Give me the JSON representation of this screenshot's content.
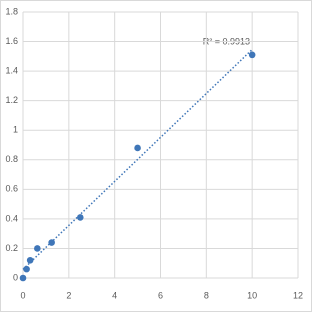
{
  "chart_data": {
    "type": "scatter",
    "annotation": "R² = 0.9913",
    "x": [
      0,
      0.156,
      0.3125,
      0.625,
      1.25,
      2.5,
      5,
      10
    ],
    "values": [
      0.0,
      0.06,
      0.12,
      0.2,
      0.24,
      0.41,
      0.88,
      1.51
    ],
    "color": "#3f76b8",
    "trendline": "linear",
    "xlim": [
      0,
      12
    ],
    "xticks": [
      0,
      2,
      4,
      6,
      8,
      10,
      12
    ],
    "ylim": [
      0,
      1.8
    ],
    "yticks": [
      0,
      0.2,
      0.4,
      0.6,
      0.8,
      1,
      1.2,
      1.4,
      1.6,
      1.8
    ],
    "grid": true
  }
}
